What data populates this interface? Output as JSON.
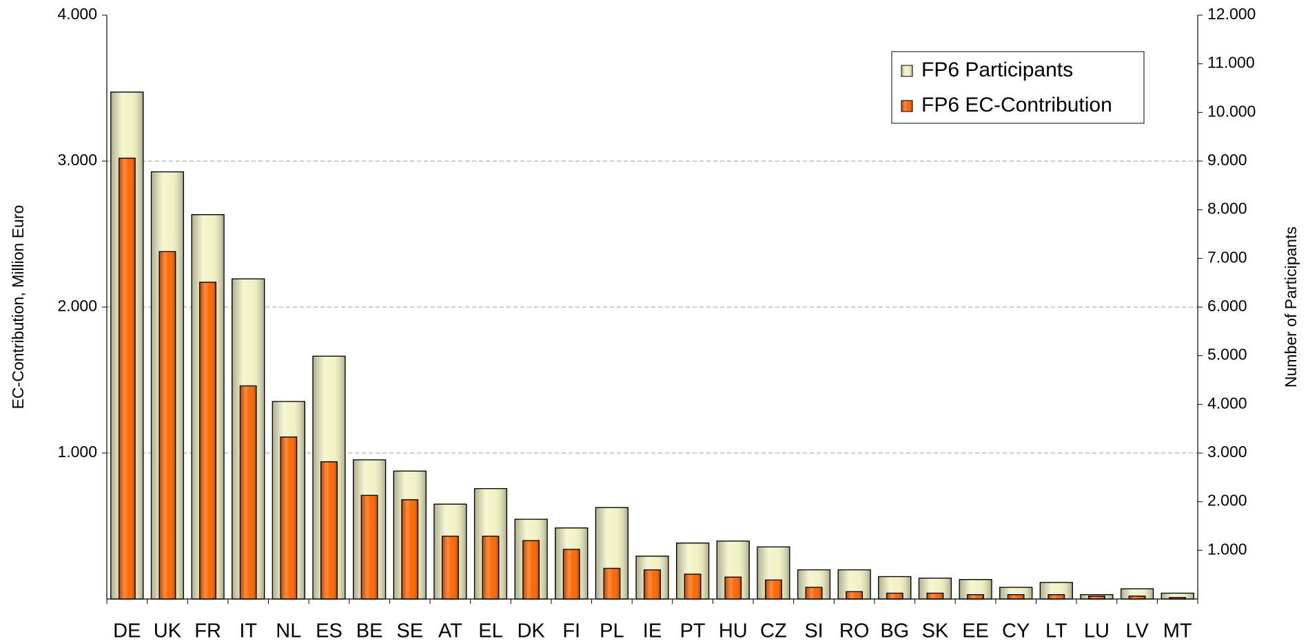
{
  "chart_data": {
    "type": "bar",
    "y_label": "EC-Contribution, Million Euro",
    "y2_label": "Number of Participants",
    "categories": [
      "DE",
      "UK",
      "FR",
      "IT",
      "NL",
      "ES",
      "BE",
      "SE",
      "AT",
      "EL",
      "DK",
      "FI",
      "PL",
      "IE",
      "PT",
      "HU",
      "CZ",
      "SI",
      "RO",
      "BG",
      "SK",
      "EE",
      "CY",
      "LT",
      "LU",
      "LV",
      "MT"
    ],
    "series": [
      {
        "name": "FP6 Participants",
        "color": "#f2f2c4",
        "axis": "y2",
        "values": [
          10420,
          8780,
          7900,
          6580,
          4060,
          4990,
          2860,
          2630,
          1950,
          2270,
          1640,
          1460,
          1880,
          880,
          1150,
          1190,
          1070,
          600,
          600,
          460,
          430,
          400,
          240,
          340,
          90,
          210,
          120
        ]
      },
      {
        "name": "FP6 EC-Contribution",
        "color": "#ff6600",
        "values": [
          3020,
          2380,
          2170,
          1460,
          1110,
          940,
          710,
          680,
          430,
          430,
          400,
          340,
          210,
          200,
          170,
          150,
          130,
          80,
          50,
          40,
          40,
          30,
          30,
          30,
          20,
          20,
          10
        ]
      }
    ],
    "ylim": [
      0,
      4000
    ],
    "yticks": [
      {
        "value": 1000,
        "label": "1.000"
      },
      {
        "value": 2000,
        "label": "2.000"
      },
      {
        "value": 3000,
        "label": "3.000"
      },
      {
        "value": 4000,
        "label": "4.000"
      }
    ],
    "y2lim": [
      0,
      12000
    ],
    "y2ticks": [
      {
        "value": 1000,
        "label": "1.000"
      },
      {
        "value": 2000,
        "label": "2.000"
      },
      {
        "value": 3000,
        "label": "3.000"
      },
      {
        "value": 4000,
        "label": "4.000"
      },
      {
        "value": 5000,
        "label": "5.000"
      },
      {
        "value": 6000,
        "label": "6.000"
      },
      {
        "value": 7000,
        "label": "7.000"
      },
      {
        "value": 8000,
        "label": "8.000"
      },
      {
        "value": 9000,
        "label": "9.000"
      },
      {
        "value": 10000,
        "label": "10.000"
      },
      {
        "value": 11000,
        "label": "11.000"
      },
      {
        "value": 12000,
        "label": "12.000"
      }
    ],
    "grid": true,
    "legend": "top-right"
  }
}
